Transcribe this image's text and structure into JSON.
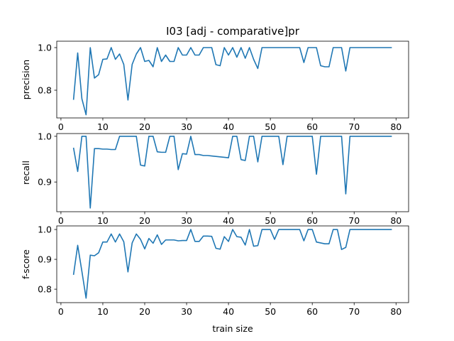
{
  "chart_data": {
    "type": "line",
    "title": "I03 [adj - comparative]pr",
    "xlabel": "train size",
    "line_color": "#1f77b4",
    "xlim": [
      -1,
      83
    ],
    "xticks": [
      "0",
      "10",
      "20",
      "30",
      "40",
      "50",
      "60",
      "70",
      "80"
    ],
    "x": [
      3,
      4,
      5,
      6,
      7,
      8,
      9,
      10,
      11,
      12,
      13,
      14,
      15,
      16,
      17,
      18,
      19,
      20,
      21,
      22,
      23,
      24,
      25,
      26,
      27,
      28,
      29,
      30,
      31,
      32,
      33,
      34,
      35,
      36,
      37,
      38,
      39,
      40,
      41,
      42,
      43,
      44,
      45,
      46,
      47,
      48,
      49,
      50,
      51,
      52,
      53,
      54,
      55,
      56,
      57,
      58,
      59,
      60,
      61,
      62,
      63,
      64,
      65,
      66,
      67,
      68,
      69,
      70,
      71,
      72,
      73,
      74,
      75,
      76,
      77,
      78,
      79
    ],
    "panels": [
      {
        "ylabel": "precision",
        "ylim": [
          0.67,
          1.03
        ],
        "yticks": [
          "0.8",
          "1.0"
        ],
        "values": [
          0.755,
          0.975,
          0.76,
          0.685,
          1.0,
          0.857,
          0.873,
          0.945,
          0.947,
          1.0,
          0.945,
          0.97,
          0.921,
          0.754,
          0.921,
          0.97,
          1.0,
          0.935,
          0.94,
          0.91,
          1.0,
          0.935,
          0.965,
          0.935,
          0.935,
          1.0,
          0.965,
          0.965,
          1.0,
          0.965,
          0.965,
          1.0,
          1.0,
          1.0,
          0.92,
          0.915,
          1.0,
          0.965,
          1.0,
          0.955,
          1.0,
          0.95,
          1.0,
          0.945,
          0.902,
          1.0,
          1.0,
          1.0,
          1.0,
          1.0,
          1.0,
          1.0,
          1.0,
          1.0,
          1.0,
          0.93,
          1.0,
          1.0,
          1.0,
          0.915,
          0.91,
          0.91,
          1.0,
          1.0,
          1.0,
          0.89,
          1.0,
          1.0,
          1.0,
          1.0,
          1.0,
          1.0,
          1.0,
          1.0,
          1.0,
          1.0,
          1.0
        ]
      },
      {
        "ylabel": "recall",
        "ylim": [
          0.835,
          1.006
        ],
        "yticks": [
          "0.9",
          "1.0"
        ],
        "values": [
          0.975,
          0.923,
          1.0,
          1.0,
          0.843,
          0.973,
          0.973,
          0.972,
          0.972,
          0.971,
          0.971,
          1.0,
          1.0,
          1.0,
          1.0,
          1.0,
          0.937,
          0.935,
          1.0,
          1.0,
          0.966,
          0.965,
          0.965,
          1.0,
          1.0,
          0.927,
          0.962,
          0.961,
          1.0,
          0.96,
          0.96,
          0.958,
          0.958,
          0.957,
          0.956,
          0.955,
          0.954,
          0.953,
          1.0,
          1.0,
          0.949,
          0.947,
          1.0,
          1.0,
          0.944,
          1.0,
          1.0,
          1.0,
          1.0,
          1.0,
          0.938,
          1.0,
          1.0,
          1.0,
          1.0,
          1.0,
          1.0,
          1.0,
          0.917,
          1.0,
          1.0,
          1.0,
          1.0,
          1.0,
          1.0,
          0.874,
          1.0,
          1.0,
          1.0,
          1.0,
          1.0,
          1.0,
          1.0,
          1.0,
          1.0,
          1.0,
          1.0
        ]
      },
      {
        "ylabel": "f-score",
        "ylim": [
          0.755,
          1.012
        ],
        "yticks": [
          "0.8",
          "0.9",
          "1.0"
        ],
        "values": [
          0.848,
          0.947,
          0.86,
          0.77,
          0.914,
          0.912,
          0.922,
          0.958,
          0.958,
          0.985,
          0.958,
          0.985,
          0.959,
          0.858,
          0.955,
          0.985,
          0.967,
          0.935,
          0.97,
          0.954,
          0.982,
          0.95,
          0.965,
          0.965,
          0.965,
          0.962,
          0.963,
          0.963,
          1.0,
          0.96,
          0.96,
          0.978,
          0.978,
          0.977,
          0.937,
          0.934,
          0.976,
          0.96,
          1.0,
          0.976,
          0.974,
          0.948,
          1.0,
          0.944,
          0.946,
          1.0,
          1.0,
          1.0,
          0.967,
          1.0,
          1.0,
          1.0,
          1.0,
          1.0,
          1.0,
          0.962,
          1.0,
          1.0,
          0.958,
          0.955,
          0.952,
          0.952,
          1.0,
          1.0,
          0.933,
          0.94,
          1.0,
          1.0,
          1.0,
          1.0,
          1.0,
          1.0,
          1.0,
          1.0,
          1.0,
          1.0,
          1.0
        ]
      }
    ]
  }
}
